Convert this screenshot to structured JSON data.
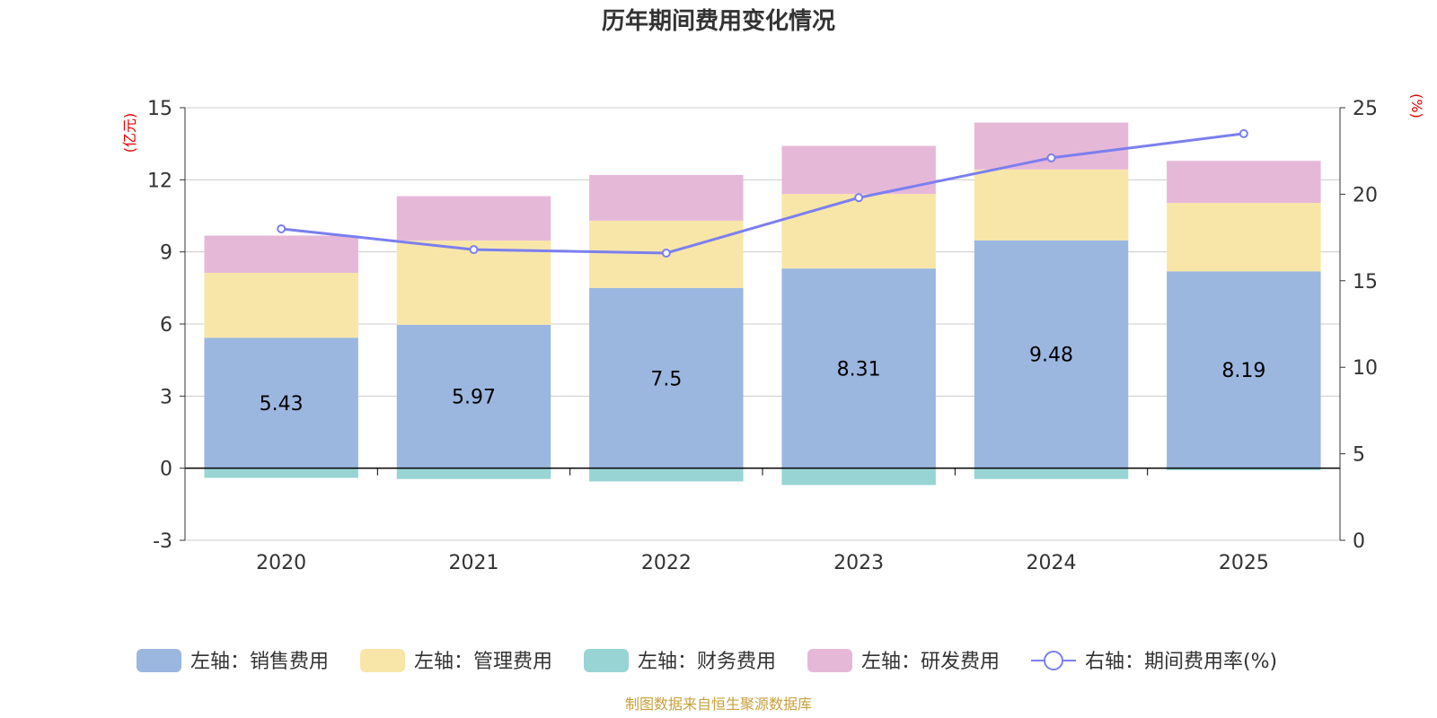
{
  "chart_data": {
    "type": "bar",
    "title": "历年期间费用变化情况",
    "categories": [
      "2020",
      "2021",
      "2022",
      "2023",
      "2024",
      "2025"
    ],
    "stacked": true,
    "series": [
      {
        "name": "左轴：销售费用",
        "axis": "left",
        "color": "#9bb7e0",
        "values": [
          5.43,
          5.97,
          7.5,
          8.31,
          9.48,
          8.19
        ],
        "show_labels": true
      },
      {
        "name": "左轴：管理费用",
        "axis": "left",
        "color": "#f8e6a8",
        "values": [
          2.7,
          3.5,
          2.8,
          3.1,
          2.95,
          2.85
        ]
      },
      {
        "name": "左轴：财务费用",
        "axis": "left",
        "color": "#98d4d4",
        "values": [
          -0.4,
          -0.45,
          -0.55,
          -0.7,
          -0.45,
          -0.08
        ]
      },
      {
        "name": "左轴：研发费用",
        "axis": "left",
        "color": "#e6b8d8",
        "values": [
          1.55,
          1.85,
          1.9,
          2.0,
          1.95,
          1.75
        ]
      }
    ],
    "line_series": {
      "name": "右轴：期间费用率(%)",
      "axis": "right",
      "type": "line",
      "color": "#7b7ff0",
      "values": [
        18.0,
        16.8,
        16.6,
        19.8,
        22.1,
        23.5
      ]
    },
    "y_left": {
      "label": "(亿元)",
      "ylim": [
        -3,
        15
      ],
      "ticks": [
        "-3",
        "0",
        "3",
        "6",
        "9",
        "12",
        "15"
      ]
    },
    "y_right": {
      "label": "(%)",
      "ylim": [
        0,
        25
      ],
      "ticks": [
        "0",
        "5",
        "10",
        "15",
        "20",
        "25"
      ]
    },
    "grid": true,
    "legend_position": "bottom"
  },
  "source": "制图数据来自恒生聚源数据库"
}
